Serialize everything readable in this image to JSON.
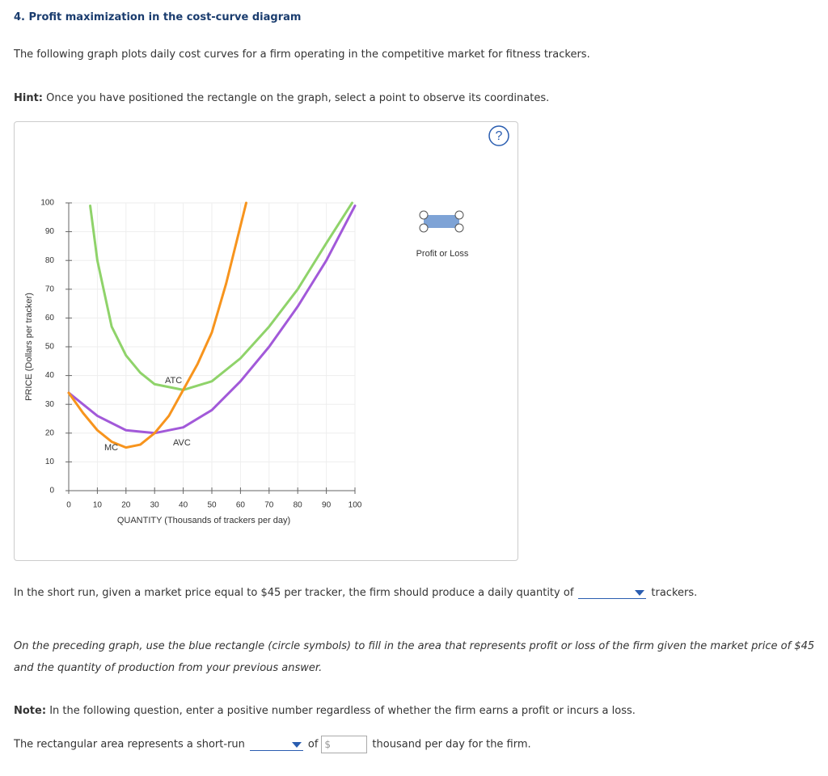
{
  "question": {
    "title": "4. Profit maximization in the cost-curve diagram",
    "intro": "The following graph plots daily cost curves for a firm operating in the competitive market for fitness trackers.",
    "hint_label": "Hint:",
    "hint_text": "Once you have positioned the rectangle on the graph, select a point to observe its coordinates."
  },
  "help_icon": "?",
  "graph_tool": {
    "label": "Profit or Loss"
  },
  "chart_data": {
    "type": "line",
    "x_label": "QUANTITY (Thousands of trackers per day)",
    "y_label": "PRICE (Dollars per tracker)",
    "xlim": [
      0,
      100
    ],
    "ylim": [
      0,
      100
    ],
    "xticks": [
      0,
      10,
      20,
      30,
      40,
      50,
      60,
      70,
      80,
      90,
      100
    ],
    "yticks": [
      0,
      10,
      20,
      30,
      40,
      50,
      60,
      70,
      80,
      90,
      100
    ],
    "grid": true,
    "series": [
      {
        "name": "ATC",
        "color": "#8fd36a",
        "x": [
          7.5,
          10,
          15,
          20,
          25,
          30,
          40,
          50,
          60,
          70,
          80,
          90,
          99
        ],
        "values": [
          99,
          80,
          57,
          47,
          41,
          37,
          35,
          38,
          46,
          57,
          70,
          86,
          100
        ]
      },
      {
        "name": "AVC",
        "color": "#a259d9",
        "x": [
          0,
          10,
          20,
          30,
          40,
          50,
          60,
          70,
          80,
          90,
          100
        ],
        "values": [
          34,
          26,
          21,
          20,
          22,
          28,
          38,
          50,
          64,
          80,
          99
        ]
      },
      {
        "name": "MC",
        "color": "#f7941d",
        "x": [
          0,
          5,
          10,
          15,
          20,
          25,
          30,
          35,
          40,
          45,
          50,
          55,
          60,
          62
        ],
        "values": [
          34,
          27,
          21,
          17,
          15,
          16,
          20,
          26,
          35,
          44,
          55,
          72,
          92,
          100
        ]
      }
    ]
  },
  "question1": {
    "before": "In the short run, given a market price equal to $45 per tracker, the firm should produce a daily quantity of",
    "after": "trackers."
  },
  "instruction": "On the preceding graph, use the blue rectangle (circle symbols) to fill in the area that represents profit or loss of the firm given the market price of $45 and the quantity of production from your previous answer.",
  "note": {
    "label": "Note:",
    "text": "In the following question, enter a positive number regardless of whether the firm earns a profit or incurs a loss."
  },
  "question2": {
    "before": "The rectangular area represents a short-run",
    "of": "of",
    "currency": "$",
    "after": "thousand per day for the firm."
  }
}
